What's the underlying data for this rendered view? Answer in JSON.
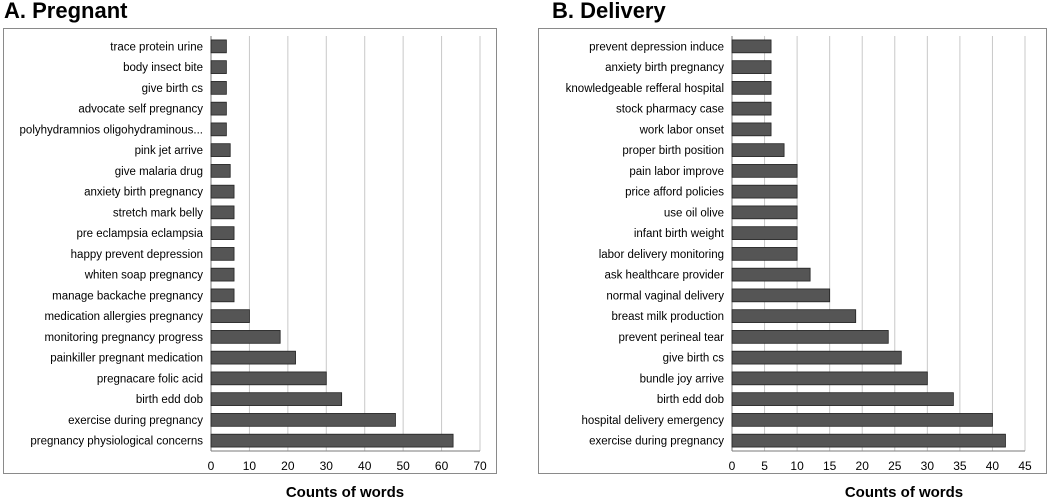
{
  "chart_data": [
    {
      "type": "bar",
      "orientation": "horizontal",
      "title": "A. Pregnant",
      "xlabel": "Counts of words",
      "ylabel": "",
      "xlim": [
        0,
        70
      ],
      "xticks": [
        0,
        10,
        20,
        30,
        40,
        50,
        60,
        70
      ],
      "grid": true,
      "bar_color": "#555555",
      "categories": [
        "trace protein urine",
        "body insect bite",
        "give birth cs",
        "advocate self pregnancy",
        "polyhydramnios oligohydraminous...",
        "pink jet arrive",
        "give malaria drug",
        "anxiety birth pregnancy",
        "stretch mark belly",
        "pre eclampsia eclampsia",
        "happy prevent depression",
        "whiten soap pregnancy",
        "manage backache pregnancy",
        "medication allergies pregnancy",
        "monitoring pregnancy progress",
        "painkiller pregnant medication",
        "pregnacare folic acid",
        "birth edd dob",
        "exercise during pregnancy",
        "pregnancy physiological concerns"
      ],
      "values": [
        4,
        4,
        4,
        4,
        4,
        5,
        5,
        6,
        6,
        6,
        6,
        6,
        6,
        10,
        18,
        22,
        30,
        34,
        48,
        63
      ]
    },
    {
      "type": "bar",
      "orientation": "horizontal",
      "title": "B. Delivery",
      "xlabel": "Counts of words",
      "ylabel": "",
      "xlim": [
        0,
        45
      ],
      "xticks": [
        0,
        5,
        10,
        15,
        20,
        25,
        30,
        35,
        40,
        45
      ],
      "grid": true,
      "bar_color": "#555555",
      "categories": [
        "prevent depression induce",
        "anxiety birth pregnancy",
        "knowledgeable refferal hospital",
        "stock pharmacy case",
        "work labor onset",
        "proper birth position",
        "pain labor improve",
        "price afford policies",
        "use oil olive",
        "infant birth weight",
        "labor delivery monitoring",
        "ask healthcare provider",
        "normal vaginal delivery",
        "breast milk production",
        "prevent perineal tear",
        "give birth cs",
        "bundle joy arrive",
        "birth edd dob",
        "hospital delivery emergency",
        "exercise during pregnancy"
      ],
      "values": [
        6,
        6,
        6,
        6,
        6,
        8,
        10,
        10,
        10,
        10,
        10,
        12,
        15,
        19,
        24,
        26,
        30,
        34,
        40,
        42
      ]
    }
  ]
}
